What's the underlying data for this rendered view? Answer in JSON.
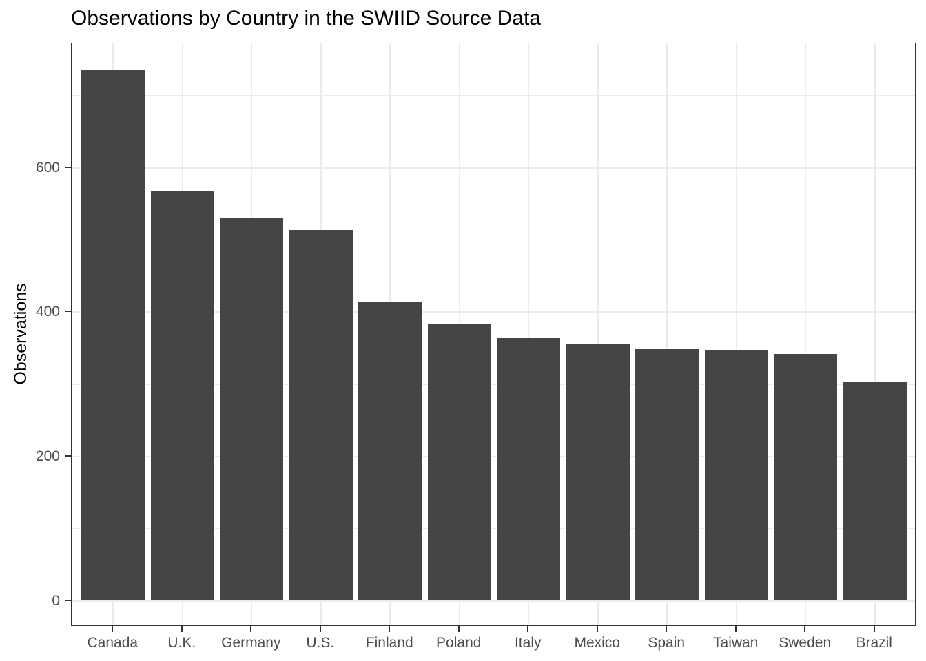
{
  "chart_data": {
    "type": "bar",
    "title": "Observations by Country in the SWIID Source Data",
    "xlabel": "",
    "ylabel": "Observations",
    "categories": [
      "Canada",
      "U.K.",
      "Germany",
      "U.S.",
      "Finland",
      "Poland",
      "Italy",
      "Mexico",
      "Spain",
      "Taiwan",
      "Sweden",
      "Brazil"
    ],
    "values": [
      736,
      568,
      530,
      514,
      415,
      384,
      364,
      356,
      349,
      347,
      342,
      303
    ],
    "ylim": [
      0,
      773
    ],
    "yticks_major": [
      0,
      200,
      400,
      600
    ],
    "yticks_minor": [
      100,
      300,
      500,
      700
    ],
    "grid": true,
    "legend": "none",
    "colors": {
      "bar_fill": "#454545",
      "panel_background": "#ffffff",
      "gridline": "#ebebeb",
      "panel_border": "#333333",
      "tick_mark": "#333333",
      "tick_label": "#4d4d4d",
      "title_text": "#000000"
    }
  }
}
